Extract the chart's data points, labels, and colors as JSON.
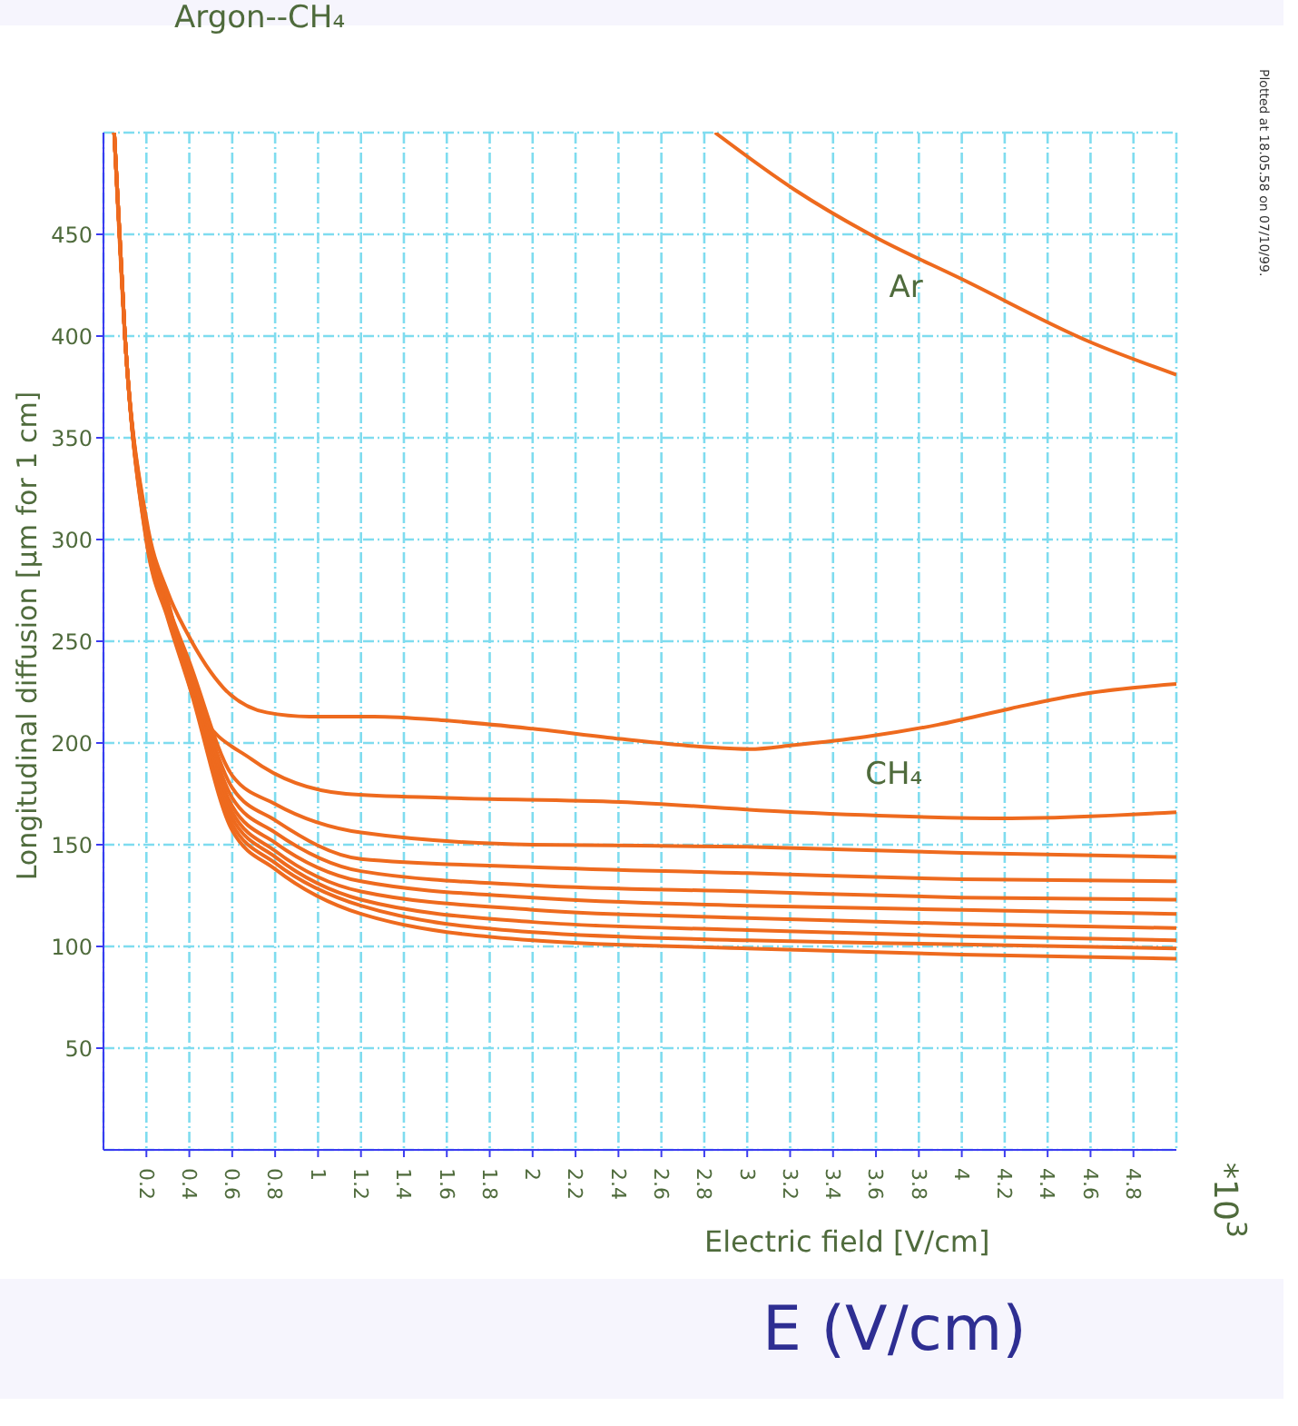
{
  "chart_data": {
    "type": "line",
    "title": "Argon--CH₄",
    "xlabel": "Electric field [V/cm]",
    "ylabel": "Longitudinal diffusion [μm for 1 cm]",
    "xlim": [
      0,
      5
    ],
    "xticks": [
      0.2,
      0.4,
      0.6,
      0.8,
      1,
      1.2,
      1.4,
      1.6,
      1.8,
      2,
      2.2,
      2.4,
      2.6,
      2.8,
      3,
      3.2,
      3.4,
      3.6,
      3.8,
      4,
      4.2,
      4.4,
      4.6,
      4.8
    ],
    "ylim": [
      0,
      500
    ],
    "yticks": [
      50,
      100,
      150,
      200,
      250,
      300,
      350,
      400,
      450
    ],
    "grid": true,
    "series": [
      {
        "name": "Ar",
        "color": "#ee6a1e",
        "x": [
          2.85,
          3.22,
          3.59,
          4.0,
          4.6,
          5.0
        ],
        "values": [
          500,
          472,
          449,
          428,
          397,
          381
        ]
      },
      {
        "name": "CH₄",
        "color": "#ee6a1e",
        "x": [
          0.05,
          0.1,
          0.2,
          0.3,
          0.39,
          0.56,
          0.76,
          0.96,
          1.26,
          1.6,
          2.0,
          2.41,
          2.81,
          3.01,
          3.22,
          3.55,
          3.89,
          4.23,
          4.56,
          5.0
        ],
        "values": [
          500,
          400,
          310,
          274,
          254,
          227,
          215,
          213,
          213,
          211,
          207,
          202,
          198,
          197,
          199,
          203,
          209,
          217,
          224,
          229
        ]
      },
      {
        "color": "#ee6a1e",
        "x": [
          0.05,
          0.1,
          0.2,
          0.3,
          0.44,
          0.69,
          1.13,
          1.6,
          2.41,
          3.22,
          4.23,
          5.0
        ],
        "values": [
          500,
          400,
          308,
          270,
          217,
          192,
          175,
          173,
          171,
          166,
          163,
          166
        ]
      },
      {
        "color": "#ee6a1e",
        "x": [
          0.05,
          0.1,
          0.2,
          0.3,
          0.4,
          0.6,
          0.8,
          1.2,
          2,
          3,
          4,
          5
        ],
        "values": [
          500,
          400,
          306,
          268,
          240,
          184,
          170,
          156,
          150,
          149,
          146,
          144
        ]
      },
      {
        "color": "#ee6a1e",
        "x": [
          0.05,
          0.1,
          0.2,
          0.3,
          0.4,
          0.6,
          0.8,
          1.2,
          2,
          3,
          4,
          5
        ],
        "values": [
          500,
          400,
          305,
          267,
          238,
          178,
          162,
          143,
          139,
          136,
          133,
          132
        ]
      },
      {
        "color": "#ee6a1e",
        "x": [
          0.05,
          0.1,
          0.2,
          0.3,
          0.4,
          0.6,
          0.8,
          1.2,
          2,
          3,
          4,
          5
        ],
        "values": [
          500,
          400,
          304,
          266,
          236,
          173,
          156,
          137,
          130,
          127,
          124,
          123
        ]
      },
      {
        "color": "#ee6a1e",
        "x": [
          0.05,
          0.1,
          0.2,
          0.3,
          0.4,
          0.6,
          0.8,
          1.2,
          2,
          3,
          4,
          5
        ],
        "values": [
          500,
          400,
          303,
          265,
          234,
          169,
          151,
          132,
          124,
          120,
          118,
          116
        ]
      },
      {
        "color": "#ee6a1e",
        "x": [
          0.05,
          0.1,
          0.2,
          0.3,
          0.4,
          0.6,
          0.8,
          1.2,
          2,
          3,
          4,
          5
        ],
        "values": [
          500,
          400,
          302,
          264,
          232,
          166,
          147,
          127,
          118,
          114,
          111,
          109
        ]
      },
      {
        "color": "#ee6a1e",
        "x": [
          0.05,
          0.1,
          0.2,
          0.3,
          0.4,
          0.6,
          0.8,
          1.2,
          2,
          3,
          4,
          5
        ],
        "values": [
          500,
          400,
          301,
          263,
          231,
          163,
          144,
          123,
          112,
          108,
          105,
          103
        ]
      },
      {
        "color": "#ee6a1e",
        "x": [
          0.05,
          0.1,
          0.2,
          0.3,
          0.4,
          0.6,
          0.8,
          1.2,
          2,
          3,
          4,
          5
        ],
        "values": [
          500,
          400,
          300,
          262,
          229,
          160,
          141,
          120,
          107,
          103,
          101,
          99
        ]
      },
      {
        "color": "#ee6a1e",
        "x": [
          0.05,
          0.1,
          0.2,
          0.3,
          0.4,
          0.6,
          0.8,
          1.2,
          2,
          3,
          4,
          5
        ],
        "values": [
          500,
          400,
          299,
          261,
          228,
          157,
          138,
          116,
          103,
          99,
          96,
          94
        ]
      }
    ],
    "annotations": [
      "*10$^{3}$",
      "Plotted at 18.05.58 on 07/10/99.",
      "E (V/cm)"
    ]
  }
}
